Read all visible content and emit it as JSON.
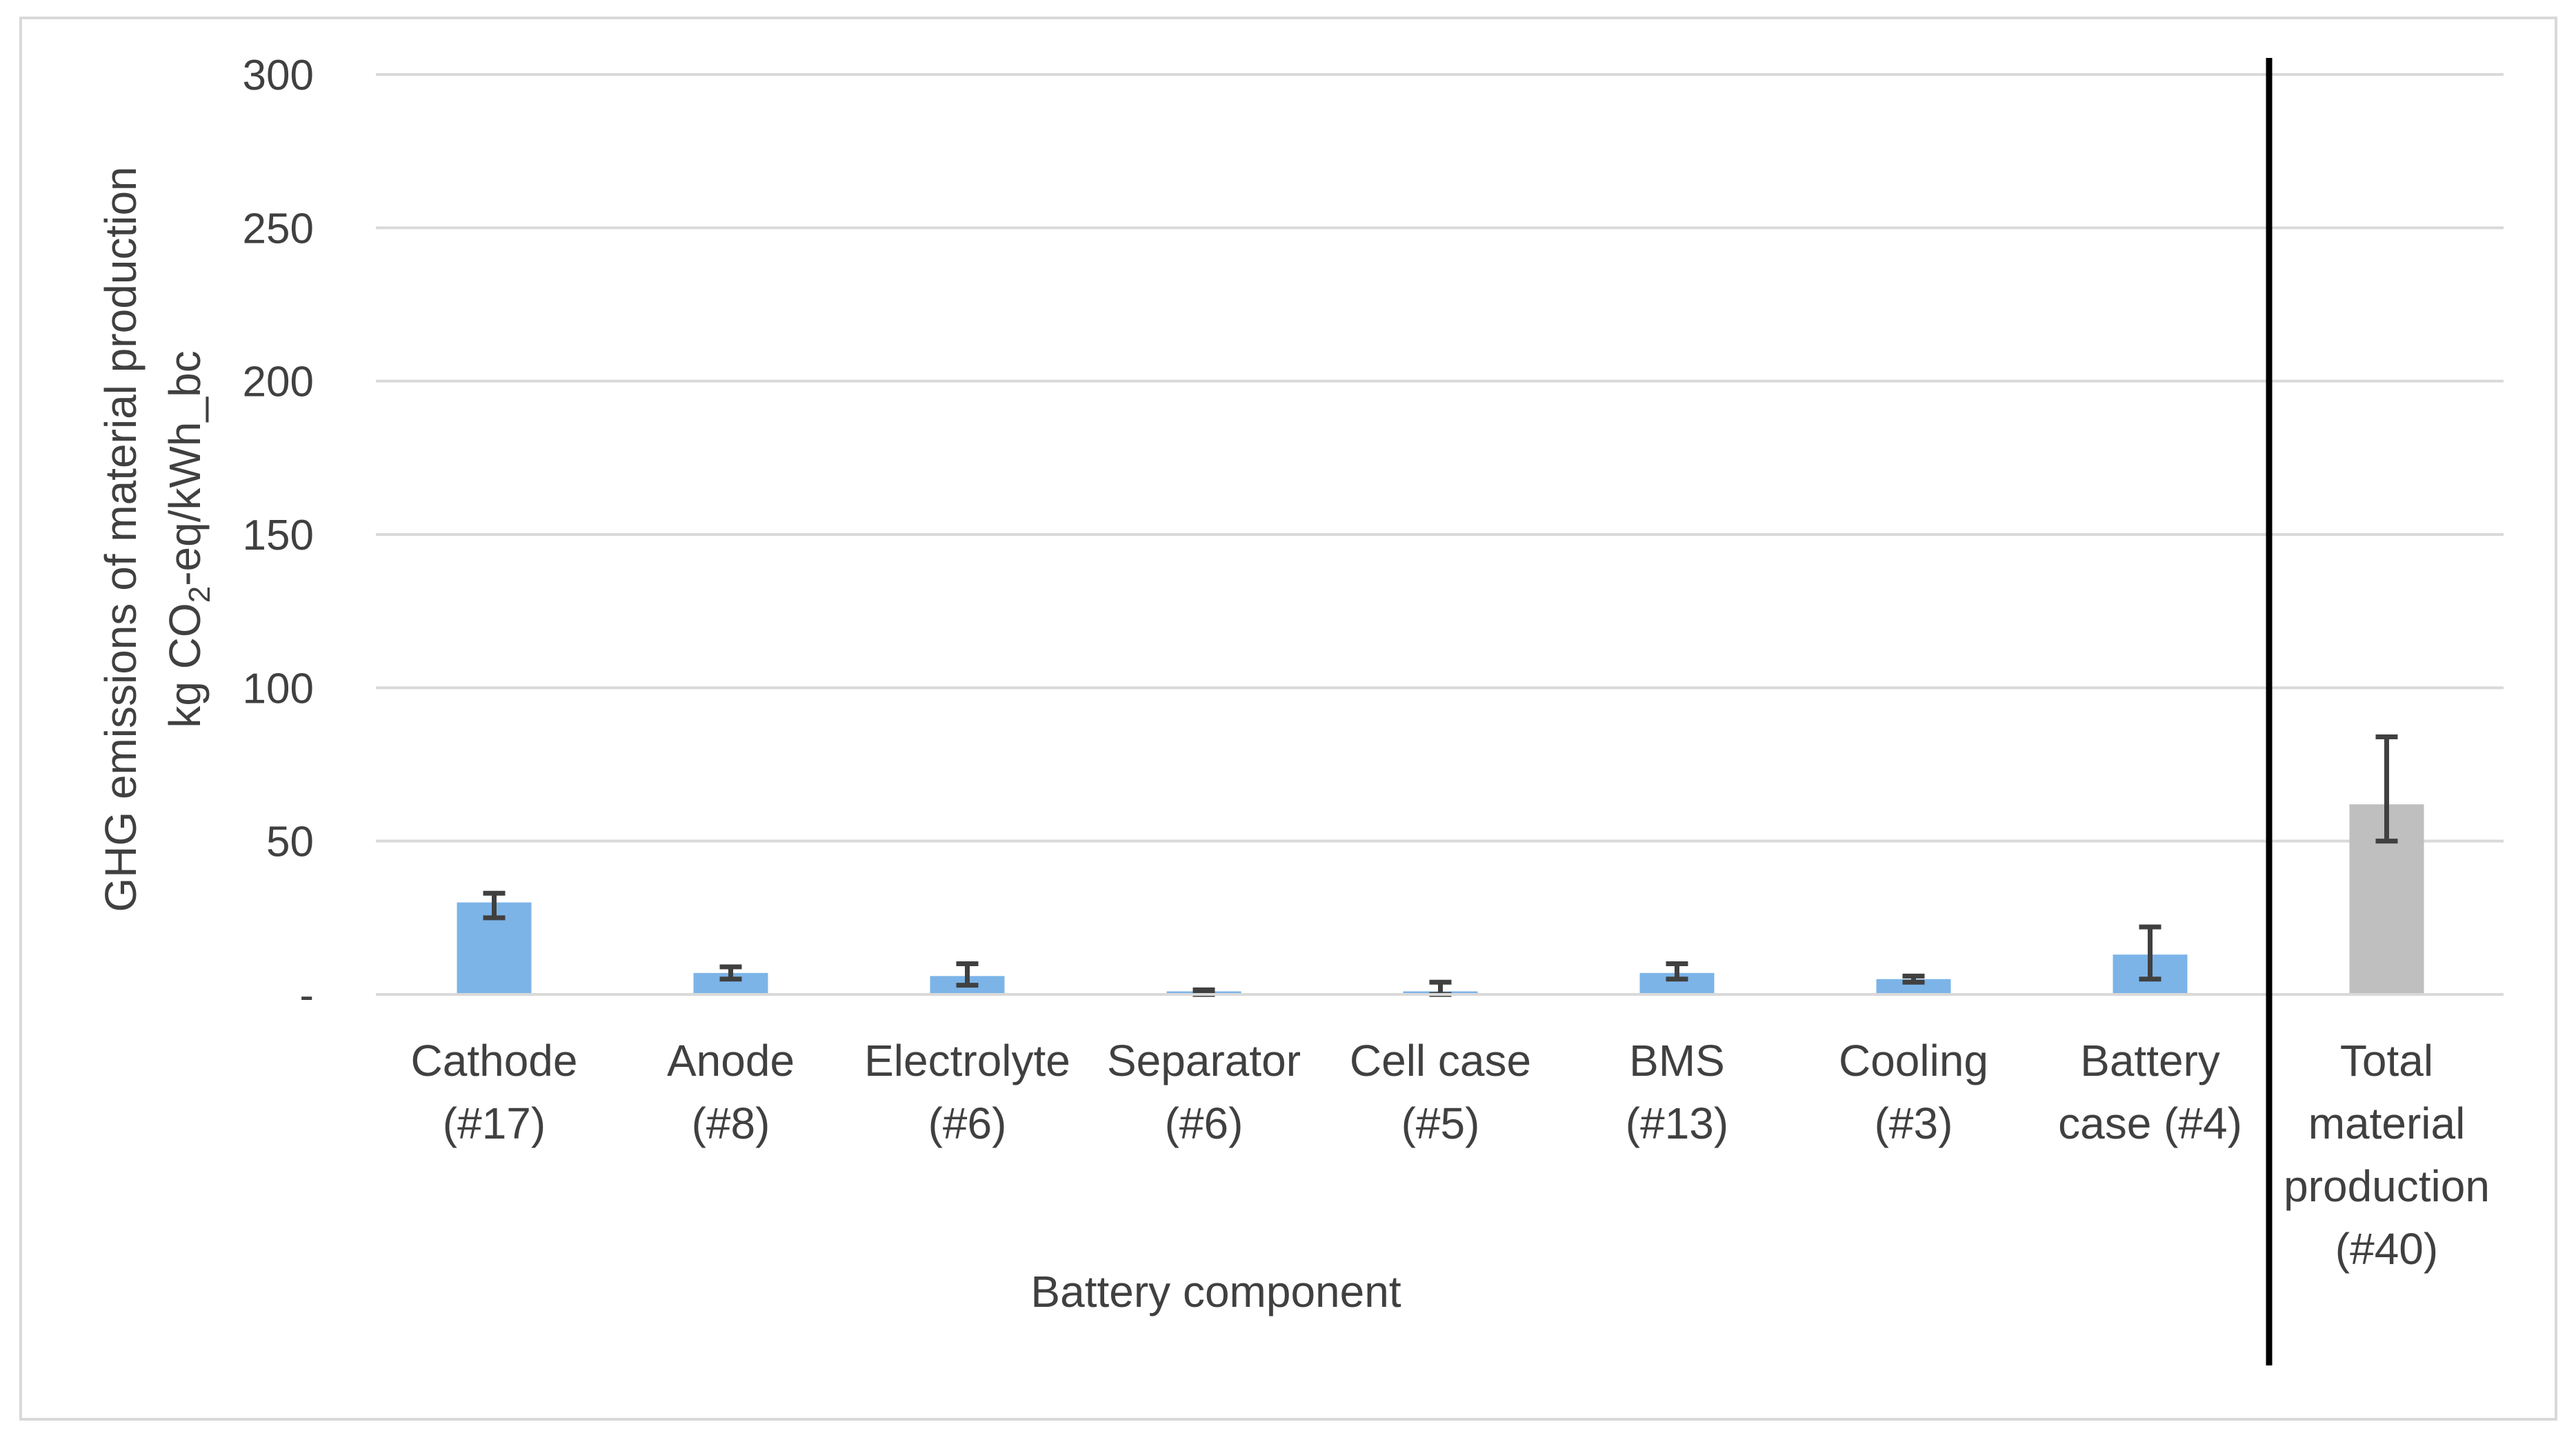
{
  "chart_data": {
    "type": "bar",
    "categories": [
      [
        "Cathode",
        "(#17)"
      ],
      [
        "Anode",
        "(#8)"
      ],
      [
        "Electrolyte",
        "(#6)"
      ],
      [
        "Separator",
        "(#6)"
      ],
      [
        "Cell case",
        "(#5)"
      ],
      [
        "BMS",
        "(#13)"
      ],
      [
        "Cooling",
        "(#3)"
      ],
      [
        "Battery",
        "case (#4)"
      ],
      [
        "Total",
        "material",
        "production",
        "(#40)"
      ]
    ],
    "values": [
      30,
      7,
      6,
      1,
      1,
      7,
      5,
      13,
      62
    ],
    "error_low": [
      25,
      5,
      3,
      0,
      0,
      5,
      4,
      5,
      50
    ],
    "error_high": [
      33,
      9,
      10,
      1.5,
      4,
      10,
      6,
      22,
      84
    ],
    "bar_colors": [
      "#7cb4e8",
      "#7cb4e8",
      "#7cb4e8",
      "#7cb4e8",
      "#7cb4e8",
      "#7cb4e8",
      "#7cb4e8",
      "#7cb4e8",
      "#bfbfbf"
    ],
    "ylim": [
      0,
      300
    ],
    "yticks": [
      {
        "value": 0,
        "label": "-"
      },
      {
        "value": 50,
        "label": "50"
      },
      {
        "value": 100,
        "label": "100"
      },
      {
        "value": 150,
        "label": "150"
      },
      {
        "value": 200,
        "label": "200"
      },
      {
        "value": 250,
        "label": "250"
      },
      {
        "value": 300,
        "label": "300"
      }
    ],
    "xlabel": "Battery component",
    "ylabel_line1": "GHG emissions of material production",
    "ylabel_line2_prefix": "kg CO",
    "ylabel_line2_sub": "2",
    "ylabel_line2_suffix": "-eq/kWh_bc",
    "grid": true,
    "separator_before_category": 8,
    "colors": {
      "gridline": "#d9d9d9",
      "error_bar": "#404040",
      "separator": "#000000",
      "text": "#404040"
    }
  }
}
